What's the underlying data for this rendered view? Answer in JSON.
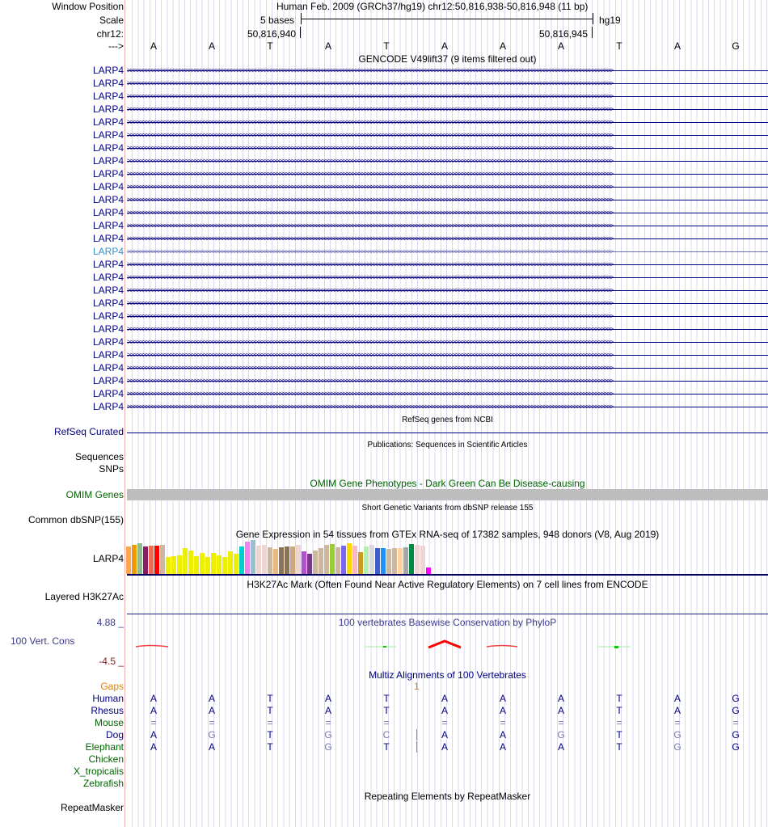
{
  "header": {
    "window_position_label": "Window Position",
    "scale_label": "Scale",
    "chrom_label": "chr12:",
    "strand_label": "--->",
    "assembly": "Human Feb. 2009 (GRCh37/hg19)   chr12:50,816,938-50,816,948 (11 bp)",
    "scale_text": "5 bases",
    "db": "hg19",
    "pos_left": "50,816,940",
    "pos_right": "50,816,945"
  },
  "sequence": [
    "A",
    "A",
    "T",
    "A",
    "T",
    "A",
    "A",
    "A",
    "T",
    "A",
    "G"
  ],
  "gencode": {
    "title": "GENCODE V49lift37 (9 items filtered out)",
    "gene": "LARP4",
    "rows": 27,
    "highlight_row": 14,
    "highlight_color": "#3a8fc8"
  },
  "refseq": {
    "label": "RefSeq Curated",
    "title": "RefSeq genes from NCBI"
  },
  "publications": {
    "title": "Publications: Sequences in Scientific Articles",
    "label": "Sequences"
  },
  "snps": {
    "label": "SNPs"
  },
  "omim": {
    "label": "OMIM Genes",
    "title": "OMIM Gene Phenotypes - Dark Green Can Be Disease-causing"
  },
  "dbsnp": {
    "label": "Common dbSNP(155)",
    "title": "Short Genetic Variants from dbSNP release 155"
  },
  "gtex": {
    "label": "LARP4",
    "title": "Gene Expression in 54 tissues from GTEx RNA-seq of 17382 samples, 948 donors (V8, Aug 2019)",
    "values": [
      34,
      36,
      38,
      34,
      35,
      35,
      36,
      21,
      22,
      23,
      32,
      29,
      22,
      26,
      21,
      26,
      23,
      21,
      28,
      25,
      34,
      40,
      42,
      35,
      36,
      33,
      31,
      33,
      34,
      34,
      36,
      28,
      25,
      29,
      32,
      36,
      37,
      33,
      35,
      38,
      35,
      27,
      34,
      36,
      32,
      32,
      31,
      32,
      32,
      33,
      37,
      36,
      35,
      8
    ],
    "colors": [
      "#FFA54F",
      "#EE9A00",
      "#8FBC8F",
      "#8B1C62",
      "#EE6A50",
      "#FF0000",
      "#CDB79E",
      "#EEEE00",
      "#EEEE00",
      "#EEEE00",
      "#EEEE00",
      "#EEEE00",
      "#EEEE00",
      "#EEEE00",
      "#EEEE00",
      "#EEEE00",
      "#EEEE00",
      "#EEEE00",
      "#EEEE00",
      "#EEEE00",
      "#00CED1",
      "#EE82EE",
      "#9AC0CD",
      "#EED5D2",
      "#EED5D2",
      "#CDB79E",
      "#EEB77E",
      "#8B7355",
      "#8B7355",
      "#CDAA7D",
      "#EED5D2",
      "#B452CD",
      "#7A378B",
      "#CDB79E",
      "#CDB79E",
      "#CDB79E",
      "#9ACD32",
      "#CDB79E",
      "#7B68EE",
      "#FFD700",
      "#FFB6C1",
      "#CD9B1D",
      "#B4EEB4",
      "#D9D9D9",
      "#3A5FCD",
      "#1E90FF",
      "#CDB79E",
      "#CDB79E",
      "#FFD39B",
      "#A6A6A6",
      "#008B45",
      "#EED5D2",
      "#EED5D2",
      "#FF00FF"
    ]
  },
  "h3k27ac": {
    "label": "Layered H3K27Ac",
    "title": "H3K27Ac Mark (Often Found Near Active Regulatory Elements) on 7 cell lines from ENCODE"
  },
  "phylop": {
    "label": "100 Vert. Cons",
    "max": "4.88 _",
    "min": "-4.5 _",
    "title": "100 vertebrates Basewise Conservation by PhyloP"
  },
  "multiz": {
    "title": "Multiz Alignments of 100 Vertebrates",
    "gaps_label": "Gaps",
    "gap_count": "1",
    "species": [
      {
        "name": "Human",
        "cls": "navy",
        "bases": [
          "A",
          "A",
          "T",
          "A",
          "T",
          "A",
          "A",
          "A",
          "T",
          "A",
          "G"
        ],
        "grey": []
      },
      {
        "name": "Rhesus",
        "cls": "navy",
        "bases": [
          "A",
          "A",
          "T",
          "A",
          "T",
          "A",
          "A",
          "A",
          "T",
          "A",
          "G"
        ],
        "grey": []
      },
      {
        "name": "Mouse",
        "cls": "green",
        "bases": [
          "=",
          "=",
          "=",
          "=",
          "=",
          "=",
          "=",
          "=",
          "=",
          "=",
          "="
        ],
        "grey": [
          0,
          1,
          2,
          3,
          4,
          5,
          6,
          7,
          8,
          9,
          10
        ]
      },
      {
        "name": "Dog",
        "cls": "navy",
        "bases": [
          "A",
          "G",
          "T",
          "G",
          "C",
          "A",
          "A",
          "G",
          "T",
          "G",
          "G"
        ],
        "grey": [
          1,
          3,
          4,
          7,
          9
        ]
      },
      {
        "name": "Elephant",
        "cls": "green",
        "bases": [
          "A",
          "A",
          "T",
          "G",
          "T",
          "A",
          "A",
          "A",
          "T",
          "G",
          "G"
        ],
        "grey": [
          3,
          9
        ]
      },
      {
        "name": "Chicken",
        "cls": "green",
        "bases": [],
        "grey": []
      },
      {
        "name": "X_tropicalis",
        "cls": "green",
        "bases": [],
        "grey": []
      },
      {
        "name": "Zebrafish",
        "cls": "green",
        "bases": [],
        "grey": []
      }
    ]
  },
  "repeatmasker": {
    "label": "RepeatMasker",
    "title": "Repeating Elements by RepeatMasker"
  }
}
